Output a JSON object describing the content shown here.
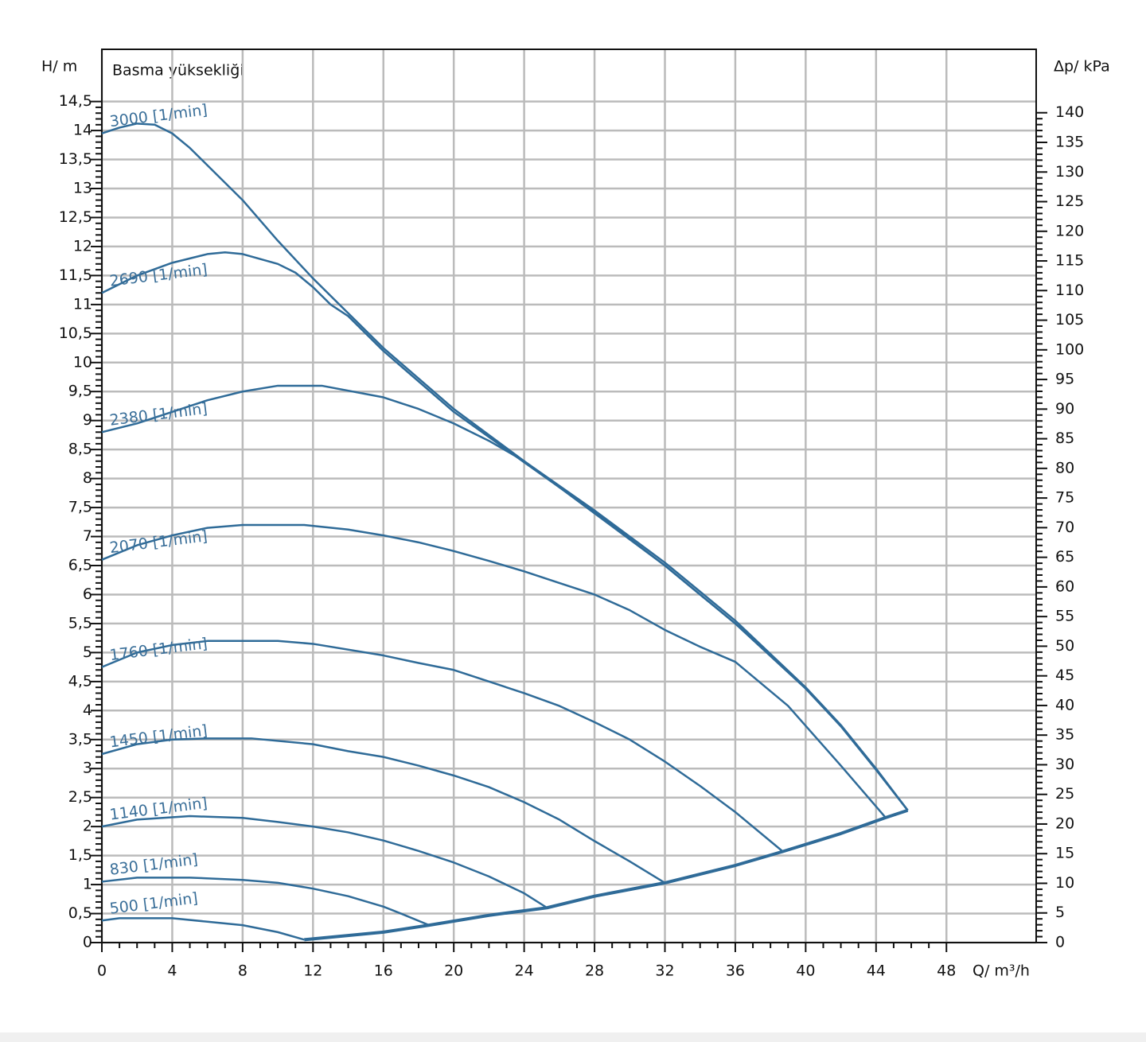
{
  "chart_data": {
    "type": "line",
    "title": "Basma yüksekliği",
    "y_label": "H/ m",
    "y2_label": "Δp/ kPa",
    "x_label": "Q/ m³/h",
    "xlim": [
      0,
      53.1
    ],
    "ylim": [
      0,
      15.4
    ],
    "y2lim": [
      0,
      150.7
    ],
    "xticks": [
      0,
      4,
      8,
      12,
      16,
      20,
      24,
      28,
      32,
      36,
      40,
      44,
      48
    ],
    "yticks": [
      0,
      {
        "value": 0.5,
        "label": "0,5"
      },
      1,
      {
        "value": 1.5,
        "label": "1,5"
      },
      2,
      {
        "value": 2.5,
        "label": "2,5"
      },
      3,
      {
        "value": 3.5,
        "label": "3,5"
      },
      4,
      {
        "value": 4.5,
        "label": "4,5"
      },
      5,
      {
        "value": 5.5,
        "label": "5,5"
      },
      6,
      {
        "value": 6.5,
        "label": "6,5"
      },
      7,
      {
        "value": 7.5,
        "label": "7,5"
      },
      8,
      {
        "value": 8.5,
        "label": "8,5"
      },
      9,
      {
        "value": 9.5,
        "label": "9,5"
      },
      10,
      {
        "value": 10.5,
        "label": "10,5"
      },
      11,
      {
        "value": 11.5,
        "label": "11,5"
      },
      12,
      {
        "value": 12.5,
        "label": "12,5"
      },
      13,
      {
        "value": 13.5,
        "label": "13,5"
      },
      14,
      {
        "value": 14.5,
        "label": "14,5"
      }
    ],
    "y2ticks": [
      0,
      5,
      10,
      15,
      20,
      25,
      30,
      35,
      40,
      45,
      50,
      55,
      60,
      65,
      70,
      75,
      80,
      85,
      90,
      95,
      100,
      105,
      110,
      115,
      120,
      125,
      130,
      135,
      140
    ],
    "grid": true,
    "series": [
      {
        "name": "3000 [1/min]",
        "color": "#2f6b98",
        "x": [
          0,
          1,
          2,
          3,
          4,
          5,
          6,
          8,
          10,
          12,
          14,
          16,
          20,
          24,
          28,
          32,
          36,
          40,
          42,
          44,
          45.8
        ],
        "values": [
          13.95,
          14.05,
          14.12,
          14.1,
          13.95,
          13.7,
          13.4,
          12.8,
          12.1,
          11.45,
          10.85,
          10.25,
          9.2,
          8.3,
          7.45,
          6.55,
          5.55,
          4.4,
          3.75,
          3.0,
          2.28
        ]
      },
      {
        "name": "2690 [1/min]",
        "color": "#2f6b98",
        "x": [
          0,
          2,
          4,
          6,
          7,
          8,
          10,
          11,
          12,
          13,
          14,
          16,
          20,
          24,
          28,
          32,
          36,
          40,
          42,
          44,
          45.8
        ],
        "values": [
          11.2,
          11.5,
          11.72,
          11.87,
          11.9,
          11.87,
          11.7,
          11.55,
          11.3,
          11.0,
          10.8,
          10.2,
          9.15,
          8.28,
          7.42,
          6.5,
          5.5,
          4.38,
          3.73,
          2.98,
          2.28
        ]
      },
      {
        "name": "2380 [1/min]",
        "color": "#2f6b98",
        "x": [
          0,
          2,
          4,
          6,
          8,
          10,
          12.5,
          16,
          18,
          20,
          22,
          24,
          28,
          32,
          36,
          40,
          42,
          44,
          45.8
        ],
        "values": [
          8.8,
          8.95,
          9.15,
          9.35,
          9.5,
          9.6,
          9.6,
          9.4,
          9.2,
          8.95,
          8.65,
          8.3,
          7.4,
          6.5,
          5.5,
          4.38,
          3.73,
          2.98,
          2.28
        ]
      },
      {
        "name": "2070 [1/min]",
        "color": "#2f6b98",
        "x": [
          0,
          2,
          4,
          6,
          8,
          11.5,
          14,
          16,
          18,
          20,
          22,
          24,
          26,
          28,
          30,
          32,
          34,
          36,
          39,
          42,
          44.5
        ],
        "values": [
          6.6,
          6.85,
          7.02,
          7.15,
          7.2,
          7.2,
          7.12,
          7.02,
          6.9,
          6.75,
          6.58,
          6.4,
          6.2,
          6.0,
          5.73,
          5.39,
          5.1,
          4.84,
          4.08,
          3.05,
          2.17
        ]
      },
      {
        "name": "1760 [1/min]",
        "color": "#2f6b98",
        "x": [
          0,
          2,
          4,
          6,
          10,
          12,
          16,
          18,
          20,
          22,
          24,
          26,
          28,
          30,
          32,
          34,
          36,
          38.7
        ],
        "values": [
          4.75,
          5.0,
          5.13,
          5.2,
          5.2,
          5.15,
          4.95,
          4.82,
          4.7,
          4.5,
          4.3,
          4.08,
          3.8,
          3.5,
          3.12,
          2.7,
          2.25,
          1.57
        ]
      },
      {
        "name": "1450 [1/min]",
        "color": "#2f6b98",
        "x": [
          0,
          2,
          4,
          6,
          8.5,
          12,
          14,
          16,
          18,
          20,
          22,
          24,
          26,
          28,
          30,
          32
        ],
        "values": [
          3.25,
          3.42,
          3.5,
          3.52,
          3.52,
          3.42,
          3.3,
          3.2,
          3.05,
          2.88,
          2.68,
          2.42,
          2.12,
          1.75,
          1.4,
          1.03
        ]
      },
      {
        "name": "1140 [1/min]",
        "color": "#2f6b98",
        "x": [
          0,
          2,
          5,
          8,
          10,
          12,
          14,
          16,
          18,
          20,
          22,
          24,
          25.3
        ],
        "values": [
          2.0,
          2.12,
          2.18,
          2.15,
          2.08,
          2.0,
          1.9,
          1.76,
          1.58,
          1.38,
          1.14,
          0.85,
          0.6
        ]
      },
      {
        "name": "830 [1/min]",
        "color": "#2f6b98",
        "x": [
          0,
          2,
          5,
          8,
          10,
          12,
          14,
          16,
          17,
          18.6
        ],
        "values": [
          1.05,
          1.12,
          1.12,
          1.08,
          1.03,
          0.93,
          0.8,
          0.62,
          0.5,
          0.3
        ]
      },
      {
        "name": "500 [1/min]",
        "color": "#2f6b98",
        "x": [
          0,
          1,
          4,
          6,
          8,
          10,
          11.5
        ],
        "values": [
          0.38,
          0.42,
          0.42,
          0.36,
          0.3,
          0.18,
          0.05
        ]
      },
      {
        "color": "#2f6b98",
        "x": [
          11.5,
          16,
          18.6,
          22,
          25.3,
          28,
          32,
          36,
          38.7,
          42,
          44.5,
          45.8
        ],
        "values": [
          0.05,
          0.18,
          0.3,
          0.47,
          0.6,
          0.8,
          1.03,
          1.33,
          1.57,
          1.88,
          2.15,
          2.28
        ]
      }
    ]
  }
}
